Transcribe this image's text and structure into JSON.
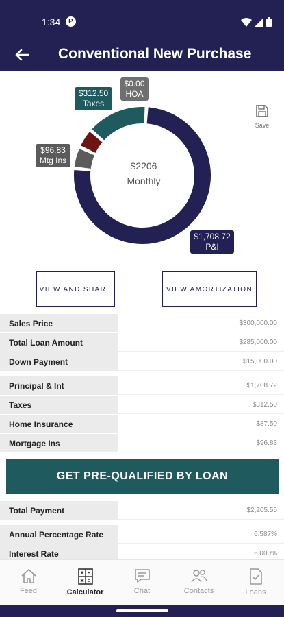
{
  "status_bar": {
    "time": "1:34",
    "badge": "P"
  },
  "app_bar": {
    "title": "Conventional New Purchase"
  },
  "chart_data": {
    "type": "pie",
    "total_label": "$2206",
    "subtitle": "Monthly",
    "slices": [
      {
        "name": "P&I",
        "label": "$1,708.72",
        "value": 1708.72,
        "color": "#232054"
      },
      {
        "name": "Mtg Ins",
        "label": "$96.83",
        "value": 96.83,
        "color": "#5b5b5b"
      },
      {
        "name": "Home Insurance",
        "value": 87.5,
        "color": "#6b1515"
      },
      {
        "name": "Taxes",
        "label": "$312.50",
        "value": 312.5,
        "color": "#1f5a5e"
      },
      {
        "name": "HOA",
        "label": "$0.00",
        "value": 0.0,
        "color": "#6f6f6f"
      }
    ]
  },
  "save": {
    "label": "Save"
  },
  "buttons": {
    "share": "VIEW AND SHARE",
    "amortization": "VIEW AMORTIZATION"
  },
  "loan_summary": [
    {
      "label": "Sales Price",
      "value": "$300,000.00"
    },
    {
      "label": "Total Loan Amount",
      "value": "$285,000.00"
    },
    {
      "label": "Down Payment",
      "value": "$15,000.00"
    }
  ],
  "payment_breakdown": [
    {
      "label": "Principal & Int",
      "value": "$1,708.72"
    },
    {
      "label": "Taxes",
      "value": "$312.50"
    },
    {
      "label": "Home Insurance",
      "value": "$87.50"
    },
    {
      "label": "Mortgage Ins",
      "value": "$96.83"
    }
  ],
  "cta": {
    "label": "GET PRE-QUALIFIED BY LOAN"
  },
  "total": [
    {
      "label": "Total Payment",
      "value": "$2,205.55"
    }
  ],
  "rates": [
    {
      "label": "Annual Percentage Rate",
      "value": "6.587%"
    },
    {
      "label": "Interest Rate",
      "value": "6.000%"
    }
  ],
  "tabs": [
    {
      "label": "Feed",
      "icon": "home-icon"
    },
    {
      "label": "Calculator",
      "icon": "calculator-icon",
      "active": true
    },
    {
      "label": "Chat",
      "icon": "chat-icon"
    },
    {
      "label": "Contacts",
      "icon": "contacts-icon"
    },
    {
      "label": "Loans",
      "icon": "document-check-icon"
    }
  ],
  "colors": {
    "brand": "#232054",
    "accent": "#1f5a5e",
    "label_bg": "#ebebeb"
  }
}
